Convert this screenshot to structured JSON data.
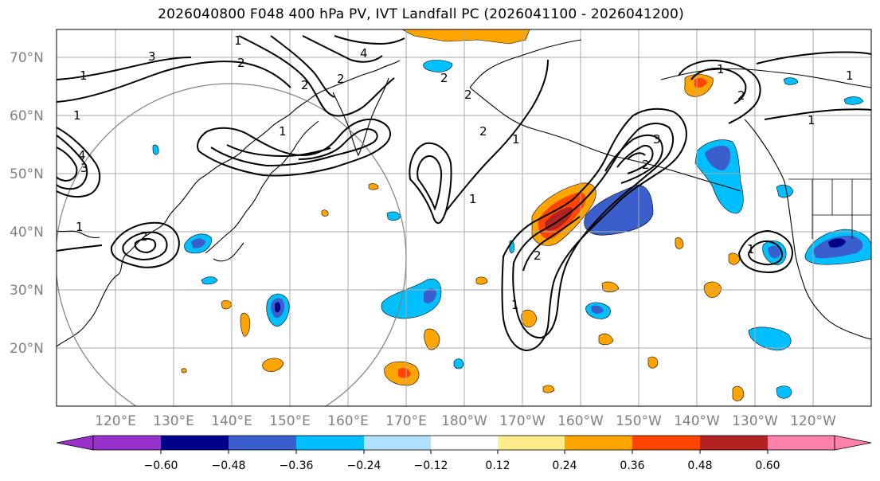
{
  "title": "2026040800 F048 400 hPa PV, IVT Landfall PC (2026041100 - 2026041200)",
  "lat_labels": [
    "70°N",
    "60°N",
    "50°N",
    "40°N",
    "30°N",
    "20°N"
  ],
  "lon_labels": [
    "120°E",
    "130°E",
    "140°E",
    "150°E",
    "160°E",
    "170°E",
    "180°W",
    "170°W",
    "160°W",
    "150°W",
    "140°W",
    "130°W",
    "120°W"
  ],
  "colorbar": {
    "colors": [
      "#9932cc",
      "#00008b",
      "#3a5fcd",
      "#00bfff",
      "#b0e2ff",
      "#ffffff",
      "#ffec8b",
      "#ffa500",
      "#ff4500",
      "#b22222",
      "#ff82ab"
    ],
    "tick_labels": [
      "−0.60",
      "−0.48",
      "−0.36",
      "−0.24",
      "−0.12",
      "0.12",
      "0.24",
      "0.36",
      "0.48",
      "0.60"
    ]
  },
  "pv_contour_labels": [
    "1",
    "3",
    "1",
    "4",
    "2",
    "2",
    "1",
    "1",
    "2",
    "2",
    "2",
    "4",
    "3",
    "2",
    "1",
    "1",
    "1",
    "2",
    "2",
    "1",
    "2",
    "1",
    "1",
    "3",
    "1",
    "2",
    "1"
  ],
  "map_colors": {
    "land_outline": "#000000",
    "grid": "#aaaaaa",
    "range_ring": "#808080"
  }
}
